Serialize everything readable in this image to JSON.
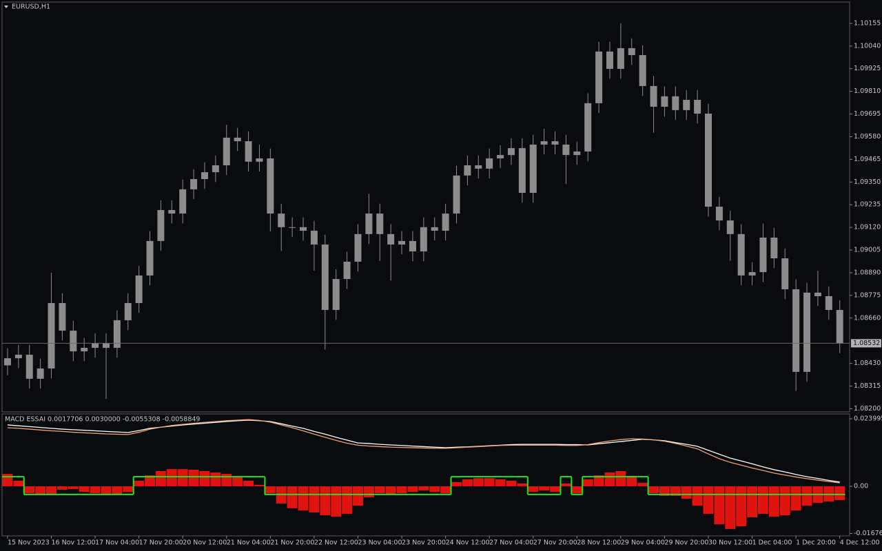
{
  "chart_data": [
    {
      "type": "candlestick",
      "title": "EURUSD,H1",
      "color": "#8c8c8c",
      "grid": false,
      "x": [
        0,
        1,
        2,
        3,
        4,
        5,
        6,
        7,
        8,
        9,
        10,
        11,
        12,
        13,
        14,
        15,
        16,
        17,
        18,
        19,
        20,
        21,
        22,
        23,
        24,
        25,
        26,
        27,
        28,
        29,
        30,
        31,
        32,
        33,
        34,
        35,
        36,
        37,
        38,
        39,
        40,
        41,
        42,
        43,
        44,
        45,
        46,
        47,
        48,
        49,
        50,
        51,
        52,
        53,
        54,
        55,
        56,
        57,
        58,
        59,
        60,
        61,
        62,
        63,
        64,
        65,
        66,
        67,
        68,
        69,
        70,
        71,
        72,
        73,
        74,
        75,
        76
      ],
      "open": [
        1.0842,
        1.08456,
        1.08474,
        1.08352,
        1.08404,
        1.08736,
        1.08596,
        1.08491,
        1.08509,
        1.08533,
        1.08509,
        1.08649,
        1.08736,
        1.08876,
        1.09051,
        1.09208,
        1.0919,
        1.09313,
        1.09365,
        1.094,
        1.09435,
        1.09575,
        1.09557,
        1.09453,
        1.0947,
        1.0919,
        1.09121,
        1.09121,
        1.09103,
        1.09033,
        1.08701,
        1.08858,
        1.08946,
        1.09086,
        1.0919,
        1.09086,
        1.09033,
        1.09051,
        1.08998,
        1.09121,
        1.09103,
        1.0919,
        1.09383,
        1.09435,
        1.09418,
        1.0947,
        1.09487,
        1.09522,
        1.09295,
        1.0954,
        1.09557,
        1.0954,
        1.09487,
        1.09505,
        1.0975,
        1.10012,
        1.09924,
        1.10029,
        1.09994,
        1.09837,
        1.09732,
        1.09785,
        1.09715,
        1.09767,
        1.09697,
        1.09225,
        1.09155,
        1.09086,
        1.08876,
        1.08893,
        1.09068,
        1.08963,
        1.08806,
        1.08387,
        1.08789,
        1.08771,
        1.08701
      ],
      "high": [
        1.08506,
        1.08524,
        1.08524,
        1.08454,
        1.0889,
        1.08786,
        1.08646,
        1.08559,
        1.08583,
        1.08583,
        1.08699,
        1.08786,
        1.08926,
        1.09101,
        1.09258,
        1.09258,
        1.09363,
        1.09415,
        1.0945,
        1.09485,
        1.0964,
        1.09625,
        1.09607,
        1.0954,
        1.0952,
        1.0924,
        1.09171,
        1.09171,
        1.09153,
        1.09083,
        1.08908,
        1.08996,
        1.09136,
        1.0929,
        1.0924,
        1.09136,
        1.09101,
        1.09101,
        1.09171,
        1.09171,
        1.0924,
        1.09433,
        1.09485,
        1.09485,
        1.0952,
        1.09537,
        1.09572,
        1.09572,
        1.0959,
        1.0962,
        1.09607,
        1.0959,
        1.09555,
        1.098,
        1.10062,
        1.10062,
        1.10155,
        1.10079,
        1.10044,
        1.09887,
        1.09835,
        1.09835,
        1.09817,
        1.09817,
        1.09747,
        1.09275,
        1.09205,
        1.09136,
        1.08943,
        1.0914,
        1.09118,
        1.09013,
        1.08856,
        1.08839,
        1.089,
        1.08821,
        1.08751
      ],
      "low": [
        1.0837,
        1.08406,
        1.08302,
        1.08302,
        1.08354,
        1.08546,
        1.08441,
        1.08441,
        1.08459,
        1.0825,
        1.08459,
        1.08599,
        1.08686,
        1.08826,
        1.09001,
        1.0914,
        1.0914,
        1.09263,
        1.09315,
        1.0935,
        1.09385,
        1.09507,
        1.09403,
        1.09403,
        1.091,
        1.09,
        1.09071,
        1.09053,
        1.089,
        1.085,
        1.08651,
        1.08808,
        1.08896,
        1.09036,
        1.0895,
        1.0885,
        1.08983,
        1.08948,
        1.08948,
        1.09053,
        1.09053,
        1.0914,
        1.09333,
        1.09368,
        1.09368,
        1.0942,
        1.09437,
        1.09245,
        1.09245,
        1.0949,
        1.0949,
        1.0934,
        1.09437,
        1.09455,
        1.097,
        1.09874,
        1.09874,
        1.09944,
        1.09787,
        1.096,
        1.09682,
        1.09665,
        1.09665,
        1.09647,
        1.09175,
        1.09105,
        1.0895,
        1.08826,
        1.08826,
        1.08843,
        1.08913,
        1.08756,
        1.0829,
        1.08337,
        1.08721,
        1.08651,
        1.08482
      ],
      "close": [
        1.08456,
        1.08474,
        1.08352,
        1.08404,
        1.08736,
        1.08596,
        1.08491,
        1.08509,
        1.08533,
        1.08509,
        1.08649,
        1.08736,
        1.08876,
        1.09051,
        1.09208,
        1.0919,
        1.09313,
        1.09365,
        1.094,
        1.09435,
        1.09575,
        1.09557,
        1.09453,
        1.0947,
        1.0919,
        1.09121,
        1.09121,
        1.09103,
        1.09033,
        1.08701,
        1.08858,
        1.08946,
        1.09086,
        1.0919,
        1.09086,
        1.09033,
        1.09051,
        1.08998,
        1.09121,
        1.09103,
        1.0919,
        1.09383,
        1.09435,
        1.09418,
        1.0947,
        1.09487,
        1.09522,
        1.09295,
        1.0954,
        1.09557,
        1.0954,
        1.09487,
        1.09505,
        1.0975,
        1.10012,
        1.09924,
        1.10029,
        1.09994,
        1.09837,
        1.09732,
        1.09785,
        1.09715,
        1.09767,
        1.09697,
        1.09225,
        1.09155,
        1.09086,
        1.08876,
        1.08893,
        1.09068,
        1.08963,
        1.08806,
        1.08387,
        1.08789,
        1.08771,
        1.08701,
        1.08532
      ],
      "last_price": 1.08532,
      "xlim": [
        -0.5,
        76.9
      ],
      "ylim": [
        1.08184,
        1.10263
      ],
      "yticks": [
        1.10155,
        {
          "value": 1.1004,
          "label": "1.10040"
        },
        1.09925,
        {
          "value": 1.0981,
          "label": "1.09810"
        },
        1.09695,
        {
          "value": 1.0958,
          "label": "1.09580"
        },
        1.09465,
        {
          "value": 1.0935,
          "label": "1.09350"
        },
        1.09235,
        {
          "value": 1.0912,
          "label": "1.09120"
        },
        1.09005,
        {
          "value": 1.0889,
          "label": "1.08890"
        },
        1.08775,
        {
          "value": 1.0866,
          "label": "1.08660"
        },
        {
          "value": 1.0843,
          "label": "1.08430"
        },
        1.08315,
        {
          "value": 1.082,
          "label": "1.08200"
        }
      ]
    },
    {
      "type": "macd",
      "title": "MACD ESSAI 0.0017706 0.0030000 -0.0055308 -0.0058849",
      "x": [
        0,
        1,
        2,
        3,
        4,
        5,
        6,
        7,
        8,
        9,
        10,
        11,
        12,
        13,
        14,
        15,
        16,
        17,
        18,
        19,
        20,
        21,
        22,
        23,
        24,
        25,
        26,
        27,
        28,
        29,
        30,
        31,
        32,
        33,
        34,
        35,
        36,
        37,
        38,
        39,
        40,
        41,
        42,
        43,
        44,
        45,
        46,
        47,
        48,
        49,
        50,
        51,
        52,
        53,
        54,
        55,
        56,
        57,
        58,
        59,
        60,
        61,
        62,
        63,
        64,
        65,
        66,
        67,
        68,
        69,
        70,
        71,
        72,
        73,
        74,
        75,
        76
      ],
      "xlim": [
        -0.5,
        76.9
      ],
      "ylim": [
        -0.0176,
        0.0257
      ],
      "yticks": [
        0.023995,
        {
          "value": 0,
          "label": "0.00"
        },
        -0.016763
      ],
      "xticks": [
        {
          "value": 0,
          "label": "15 Nov 2023"
        },
        {
          "value": 4,
          "label": "16 Nov 12:00"
        },
        {
          "value": 8,
          "label": "17 Nov 04:00"
        },
        {
          "value": 12,
          "label": "17 Nov 20:00"
        },
        {
          "value": 16,
          "label": "20 Nov 12:00"
        },
        {
          "value": 20,
          "label": "21 Nov 04:00"
        },
        {
          "value": 24,
          "label": "21 Nov 20:00"
        },
        {
          "value": 28,
          "label": "22 Nov 12:00"
        },
        {
          "value": 32,
          "label": "23 Nov 04:00"
        },
        {
          "value": 36,
          "label": "23 Nov 20:00"
        },
        {
          "value": 40,
          "label": "24 Nov 12:00"
        },
        {
          "value": 44,
          "label": "27 Nov 04:00"
        },
        {
          "value": 48,
          "label": "27 Nov 20:00"
        },
        {
          "value": 52,
          "label": "28 Nov 12:00"
        },
        {
          "value": 56,
          "label": "29 Nov 04:00"
        },
        {
          "value": 60,
          "label": "29 Nov 20:00"
        },
        {
          "value": 64,
          "label": "30 Nov 12:00"
        },
        {
          "value": 68,
          "label": "1 Dec 04:00"
        },
        {
          "value": 72,
          "label": "1 Dec 20:00"
        },
        {
          "value": 76,
          "label": "4 Dec 12:00"
        }
      ],
      "series": [
        {
          "style": "histogram",
          "color": "#e0140f",
          "values": [
            0.0044,
            0.002,
            -0.0025,
            -0.0032,
            -0.0029,
            -0.0012,
            -0.001,
            -0.002,
            -0.0025,
            -0.0029,
            -0.0029,
            -0.002,
            0.002,
            0.0039,
            0.0054,
            0.0061,
            0.0061,
            0.0059,
            0.0054,
            0.0049,
            0.0044,
            0.0034,
            0.002,
            0.0005,
            -0.0025,
            -0.0061,
            -0.0078,
            -0.0086,
            -0.0093,
            -0.0103,
            -0.0108,
            -0.0098,
            -0.0069,
            -0.0039,
            -0.0025,
            -0.0029,
            -0.0025,
            -0.002,
            -0.0015,
            -0.002,
            -0.0025,
            0.0015,
            0.0025,
            0.0029,
            0.0029,
            0.0025,
            0.002,
            0.001,
            -0.002,
            -0.0015,
            -0.002,
            0.001,
            -0.0025,
            0.0025,
            0.0039,
            0.0049,
            0.0054,
            0.0037,
            0.0012,
            -0.0025,
            -0.0034,
            -0.0034,
            -0.0044,
            -0.0069,
            -0.0098,
            -0.0135,
            -0.0152,
            -0.0142,
            -0.011,
            -0.0098,
            -0.0108,
            -0.0103,
            -0.0086,
            -0.0069,
            -0.0059,
            -0.0054,
            -0.0049
          ]
        },
        {
          "style": "step",
          "color": "#1ee61e",
          "values": [
            0.0034,
            0.0034,
            -0.0029,
            -0.0029,
            -0.0029,
            -0.0029,
            -0.0029,
            -0.0029,
            -0.0029,
            -0.0029,
            -0.0029,
            -0.0029,
            0.0034,
            0.0034,
            0.0034,
            0.0034,
            0.0034,
            0.0034,
            0.0034,
            0.0034,
            0.0034,
            0.0034,
            0.0034,
            0.0034,
            -0.0029,
            -0.0029,
            -0.0029,
            -0.0029,
            -0.0029,
            -0.0029,
            -0.0029,
            -0.0029,
            -0.0029,
            -0.0029,
            -0.0029,
            -0.0029,
            -0.0029,
            -0.0029,
            -0.0029,
            -0.0029,
            -0.0029,
            0.0034,
            0.0034,
            0.0034,
            0.0034,
            0.0034,
            0.0034,
            0.0034,
            -0.0029,
            -0.0029,
            -0.0029,
            0.0034,
            -0.0029,
            0.0034,
            0.0034,
            0.0034,
            0.0034,
            0.0034,
            0.0034,
            -0.0029,
            -0.0029,
            -0.0029,
            -0.0029,
            -0.0029,
            -0.0029,
            -0.0029,
            -0.0029,
            -0.0029,
            -0.0029,
            -0.0029,
            -0.0029,
            -0.0029,
            -0.0029,
            -0.0029,
            -0.0029,
            -0.0029,
            -0.0029
          ]
        },
        {
          "style": "line",
          "color": "#ffffff",
          "values": [
            0.0218,
            0.0215,
            0.0212,
            0.0209,
            0.0206,
            0.0203,
            0.0201,
            0.0199,
            0.0197,
            0.0195,
            0.0193,
            0.0191,
            0.0198,
            0.0206,
            0.021,
            0.0214,
            0.0218,
            0.0221,
            0.0224,
            0.0227,
            0.023,
            0.0233,
            0.0235,
            0.0233,
            0.023,
            0.0222,
            0.0214,
            0.0206,
            0.0195,
            0.0185,
            0.0174,
            0.0164,
            0.0154,
            0.0152,
            0.0149,
            0.0147,
            0.0145,
            0.0143,
            0.0141,
            0.0139,
            0.0137,
            0.0139,
            0.014,
            0.0142,
            0.0144,
            0.0146,
            0.0148,
            0.0149,
            0.0149,
            0.0149,
            0.0149,
            0.0148,
            0.0148,
            0.0147,
            0.0151,
            0.0155,
            0.0159,
            0.0163,
            0.0167,
            0.0165,
            0.0162,
            0.0155,
            0.0149,
            0.0142,
            0.0128,
            0.0114,
            0.01,
            0.009,
            0.008,
            0.0069,
            0.0059,
            0.0051,
            0.0042,
            0.0034,
            0.0028,
            0.0021,
            0.0015
          ]
        },
        {
          "style": "line",
          "color": "#f4a07a",
          "values": [
            0.0208,
            0.0206,
            0.0203,
            0.02,
            0.0197,
            0.0195,
            0.0192,
            0.019,
            0.0188,
            0.0186,
            0.0185,
            0.0184,
            0.0192,
            0.0203,
            0.021,
            0.0216,
            0.022,
            0.0224,
            0.0227,
            0.023,
            0.0233,
            0.0235,
            0.0237,
            0.0234,
            0.0228,
            0.0218,
            0.0208,
            0.0197,
            0.0185,
            0.0174,
            0.0163,
            0.0153,
            0.0146,
            0.0143,
            0.0141,
            0.0139,
            0.0138,
            0.0137,
            0.0136,
            0.0135,
            0.0135,
            0.0137,
            0.0139,
            0.0141,
            0.0143,
            0.0145,
            0.0146,
            0.0146,
            0.0146,
            0.0146,
            0.0146,
            0.0145,
            0.0145,
            0.0148,
            0.0155,
            0.0161,
            0.0166,
            0.0169,
            0.0168,
            0.0165,
            0.016,
            0.0152,
            0.0143,
            0.0133,
            0.0115,
            0.0098,
            0.0085,
            0.0075,
            0.0065,
            0.0056,
            0.0047,
            0.004,
            0.0033,
            0.0027,
            0.0022,
            0.0017,
            0.0012
          ]
        }
      ]
    }
  ]
}
